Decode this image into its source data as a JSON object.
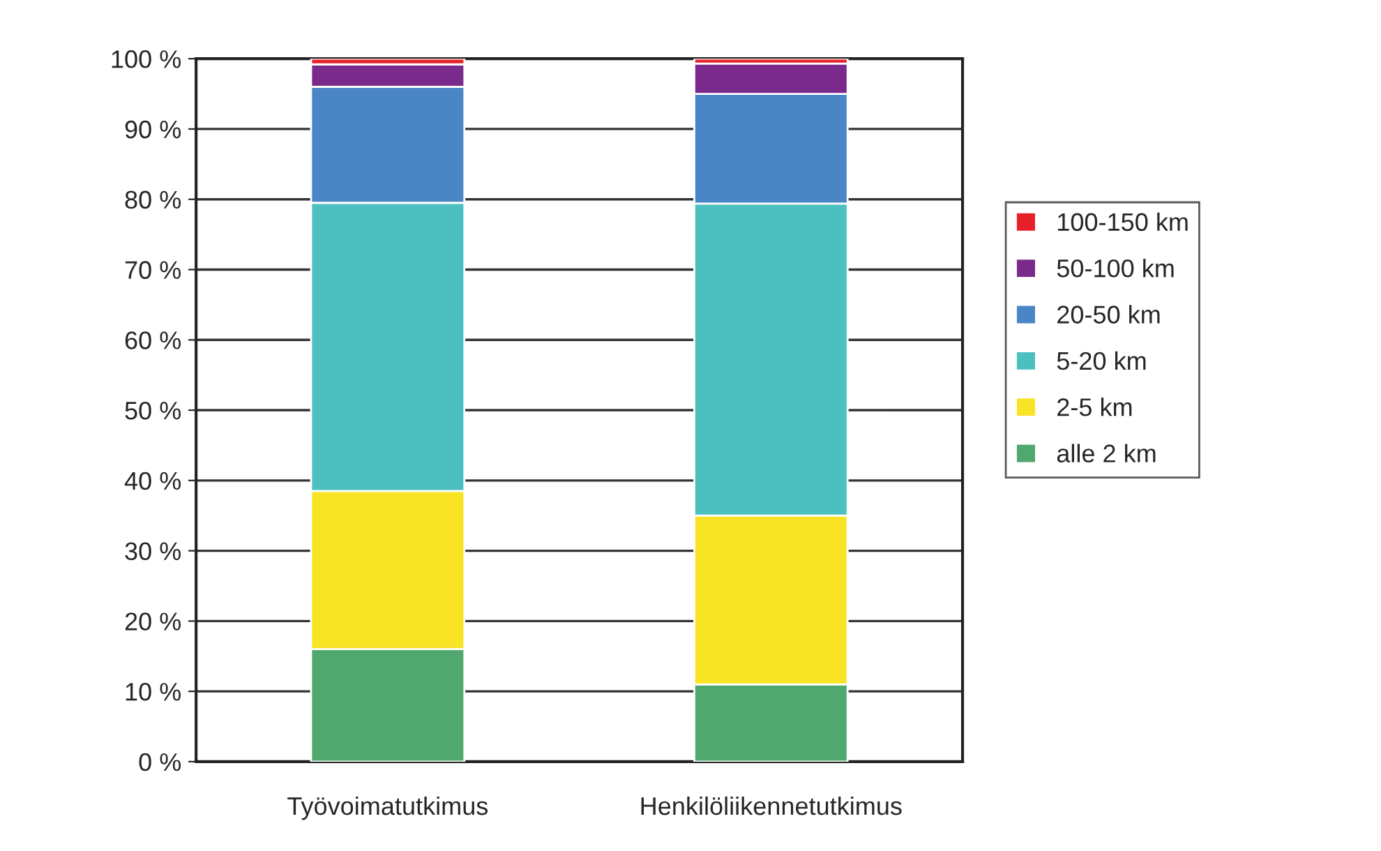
{
  "chart_data": {
    "type": "bar",
    "stacked": true,
    "categories": [
      "Työvoimatutkimus",
      "Henkilöliikennetutkimus"
    ],
    "series": [
      {
        "name": "alle 2 km",
        "color": "#50a86e",
        "values": [
          16,
          11
        ]
      },
      {
        "name": "2-5 km",
        "color": "#f8e424",
        "values": [
          22.5,
          24
        ]
      },
      {
        "name": "5-20 km",
        "color": "#4cc0c0",
        "values": [
          41,
          44.4
        ]
      },
      {
        "name": "20-50 km",
        "color": "#4a86c6",
        "values": [
          16.5,
          15.6
        ]
      },
      {
        "name": "50-100 km",
        "color": "#7a2a8a",
        "values": [
          3.2,
          4.3
        ]
      },
      {
        "name": "100-150 km",
        "color": "#e8202a",
        "values": [
          0.8,
          0.7
        ]
      }
    ],
    "ylim": [
      0,
      100
    ],
    "yticks": [
      {
        "value": 0,
        "label": "0 %"
      },
      {
        "value": 10,
        "label": "10 %"
      },
      {
        "value": 20,
        "label": "20 %"
      },
      {
        "value": 30,
        "label": "30 %"
      },
      {
        "value": 40,
        "label": "40 %"
      },
      {
        "value": 50,
        "label": "50 %"
      },
      {
        "value": 60,
        "label": "60 %"
      },
      {
        "value": 70,
        "label": "70 %"
      },
      {
        "value": 80,
        "label": "80 %"
      },
      {
        "value": 90,
        "label": "90 %"
      },
      {
        "value": 100,
        "label": "100 %"
      }
    ],
    "grid": "y",
    "legend": "right"
  }
}
